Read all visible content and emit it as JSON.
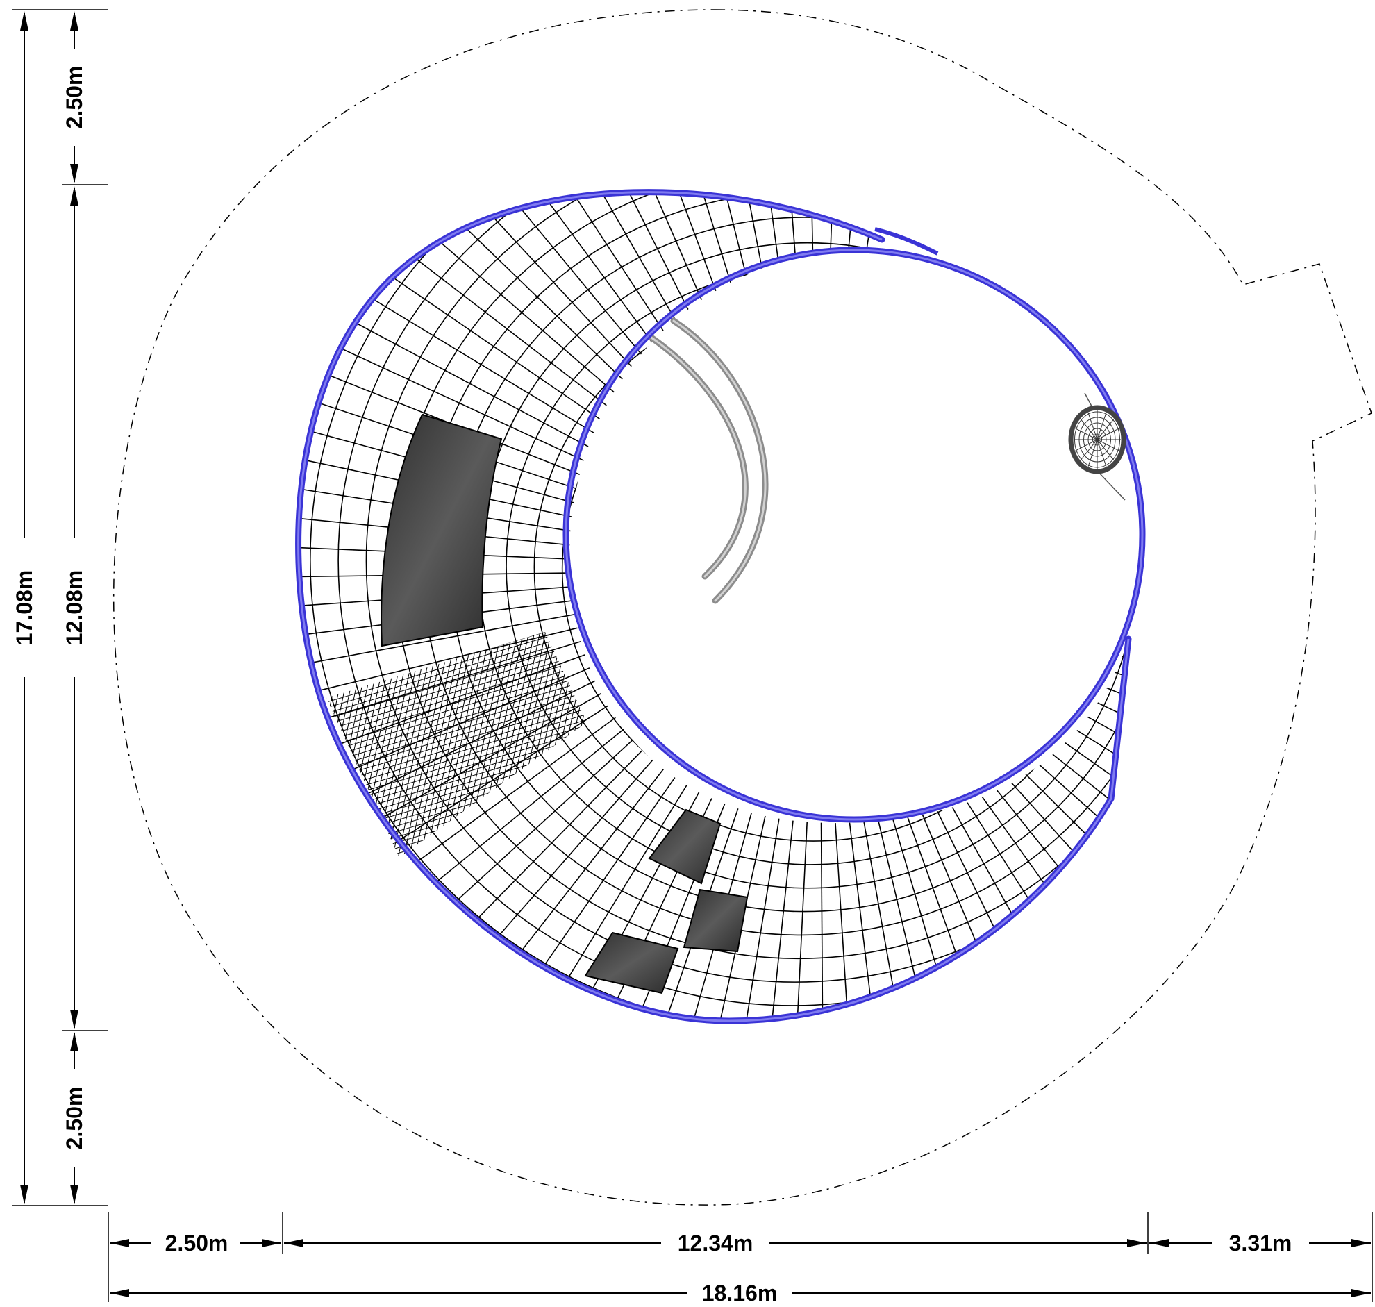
{
  "dimensions": {
    "left_outer_total": "17.08m",
    "left_inner_top": "2.50m",
    "left_inner_middle": "12.08m",
    "left_inner_bottom": "2.50m",
    "bottom_left": "2.50m",
    "bottom_middle": "12.34m",
    "bottom_right": "3.31m",
    "bottom_total": "18.16m"
  },
  "colors": {
    "frame": "#3a33d6",
    "panel": "#3c3c3c",
    "rope": "#8c8c8c"
  }
}
